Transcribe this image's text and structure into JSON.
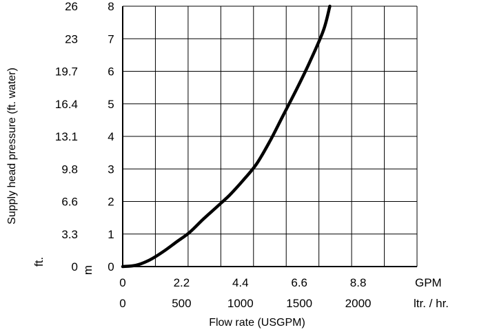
{
  "chart_data": {
    "type": "line",
    "ylabel": "Supply head pressure (ft. water)",
    "xlabel": "Flow rate (USGPM)",
    "x_primary": {
      "unit": "GPM",
      "ticks": [
        0,
        2.2,
        4.4,
        6.6,
        8.8
      ],
      "tick_labels": [
        "0",
        "2.2",
        "4.4",
        "6.6",
        "8.8"
      ],
      "range": [
        0,
        11
      ]
    },
    "x_secondary": {
      "unit": "ltr. / hr.",
      "tick_labels": [
        "0",
        "500",
        "1000",
        "1500",
        "2000"
      ]
    },
    "y_primary": {
      "unit": "m",
      "ticks": [
        0,
        1,
        2,
        3,
        4,
        5,
        6,
        7,
        8
      ],
      "tick_labels": [
        "0",
        "1",
        "2",
        "3",
        "4",
        "5",
        "6",
        "7",
        "8"
      ],
      "range": [
        0,
        8
      ]
    },
    "y_secondary": {
      "unit": "ft.",
      "tick_labels": [
        "0",
        "3.3",
        "6.6",
        "9.8",
        "13.1",
        "16.4",
        "19.7",
        "23",
        "26"
      ]
    },
    "grid": true,
    "series": [
      {
        "x": [
          0,
          0.5,
          1.0,
          1.5,
          2.0,
          2.5,
          3.0,
          3.5,
          4.0,
          4.5,
          5.0,
          5.5,
          6.0,
          6.5,
          7.0,
          7.5,
          7.74
        ],
        "y": [
          0,
          0.04,
          0.2,
          0.45,
          0.75,
          1.05,
          1.45,
          1.82,
          2.2,
          2.65,
          3.15,
          3.85,
          4.65,
          5.45,
          6.3,
          7.25,
          8.0
        ]
      }
    ],
    "colors": {
      "line": "#000000",
      "grid": "#000000",
      "background": "#ffffff"
    }
  }
}
